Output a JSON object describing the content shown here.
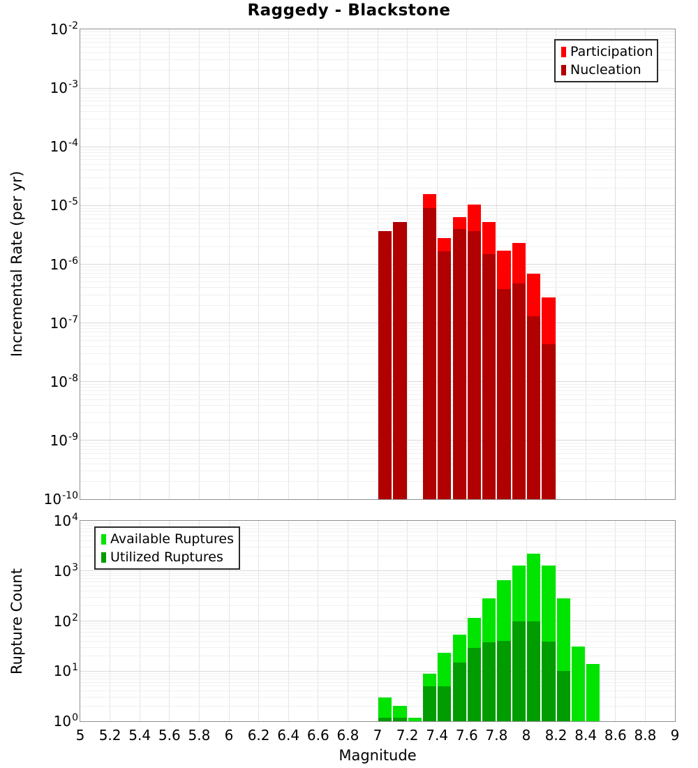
{
  "title": "Raggedy - Blackstone",
  "xlabel": "Magnitude",
  "chart_data": [
    {
      "type": "bar",
      "title": "Raggedy - Blackstone",
      "ylabel": "Incremental Rate (per yr)",
      "xlabel": "Magnitude",
      "xlim": [
        5,
        9
      ],
      "ylim_exponents": [
        -10,
        -2
      ],
      "ytick_exponents": [
        -2,
        -3,
        -4,
        -5,
        -6,
        -7,
        -8,
        -9,
        -10
      ],
      "bin_width": 0.1,
      "grid": "on",
      "legend_position": "top-right",
      "x": [
        7.05,
        7.15,
        7.25,
        7.35,
        7.45,
        7.55,
        7.65,
        7.75,
        7.85,
        7.95,
        8.05,
        8.15
      ],
      "series": [
        {
          "name": "Participation",
          "color": "#FF0000",
          "values": [
            3.7e-06,
            5.3e-06,
            0,
            1.55e-05,
            2.8e-06,
            6.4e-06,
            1.05e-05,
            5.3e-06,
            1.7e-06,
            2.3e-06,
            6.9e-07,
            2.7e-07
          ]
        },
        {
          "name": "Nucleation",
          "color": "#B00000",
          "values": [
            3.7e-06,
            5.3e-06,
            0,
            9e-06,
            1.65e-06,
            4e-06,
            3.7e-06,
            1.5e-06,
            3.8e-07,
            4.7e-07,
            1.3e-07,
            4.4e-08
          ]
        }
      ]
    },
    {
      "type": "bar",
      "ylabel": "Rupture Count",
      "xlabel": "Magnitude",
      "xlim": [
        5,
        9
      ],
      "ylim_exponents": [
        0,
        4
      ],
      "ytick_exponents": [
        4,
        3,
        2,
        1,
        0
      ],
      "xtick_labels": [
        "5",
        "5.2",
        "5.4",
        "5.6",
        "5.8",
        "6",
        "6.2",
        "6.4",
        "6.6",
        "6.8",
        "7",
        "7.2",
        "7.4",
        "7.6",
        "7.8",
        "8",
        "8.2",
        "8.4",
        "8.6",
        "8.8",
        "9"
      ],
      "bin_width": 0.1,
      "grid": "on",
      "legend_position": "top-left",
      "x": [
        7.05,
        7.15,
        7.25,
        7.35,
        7.45,
        7.55,
        7.65,
        7.75,
        7.85,
        7.95,
        8.05,
        8.15,
        8.25,
        8.35,
        8.45
      ],
      "series": [
        {
          "name": "Available Ruptures",
          "color": "#00E400",
          "values": [
            3,
            2,
            1,
            9,
            23,
            53,
            115,
            285,
            660,
            1300,
            2200,
            1300,
            280,
            31,
            14
          ]
        },
        {
          "name": "Utilized Ruptures",
          "color": "#009C00",
          "values": [
            1,
            1,
            0,
            5,
            5,
            15,
            29,
            37,
            40,
            98,
            98,
            39,
            10,
            0,
            0
          ]
        }
      ]
    }
  ]
}
